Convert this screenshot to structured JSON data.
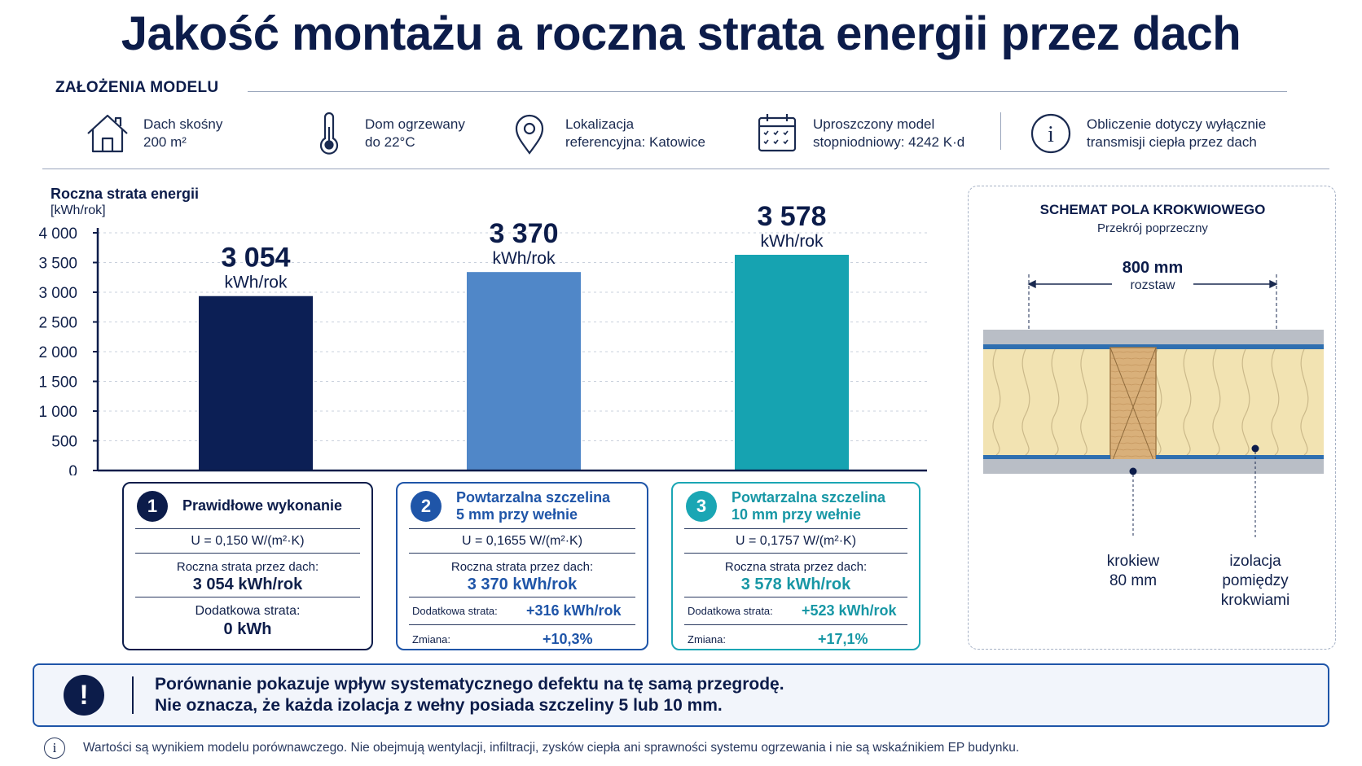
{
  "title": "Jakość montażu a roczna strata energii przez dach",
  "assumptions": {
    "heading": "ZAŁOŻENIA MODELU",
    "items": [
      {
        "icon": "house-icon",
        "line1": "Dach skośny",
        "line2": "200 m²"
      },
      {
        "icon": "thermometer-icon",
        "line1": "Dom ogrzewany",
        "line2": "do 22°C"
      },
      {
        "icon": "location-pin-icon",
        "line1": "Lokalizacja",
        "line2": "referencyjna: Katowice"
      },
      {
        "icon": "calendar-icon",
        "line1": "Uproszczony model",
        "line2": "stopniodniowy: 4242 K·d"
      },
      {
        "icon": "info-icon",
        "line1": "Obliczenie dotyczy wyłącznie",
        "line2": "transmisji ciepła przez dach"
      }
    ]
  },
  "chart_data": {
    "type": "bar",
    "ylabel": "Roczna strata energii",
    "yunit": "[kWh/rok]",
    "ylim": [
      0,
      4000
    ],
    "yticks": [
      0,
      500,
      1000,
      1500,
      2000,
      2500,
      3000,
      3500,
      4000
    ],
    "ytick_labels": [
      "0",
      "500",
      "1 000",
      "1 500",
      "2 000",
      "2 500",
      "3 000",
      "3 500",
      "4 000"
    ],
    "grid": true,
    "categories": [
      "1",
      "2",
      "3"
    ],
    "values": [
      3054,
      3370,
      3578
    ],
    "drawn_values": [
      2935,
      3340,
      3630
    ],
    "value_labels": [
      "3 054",
      "3 370",
      "3 578"
    ],
    "value_unit": "kWh/rok",
    "colors": [
      "#0c1f55",
      "#5087c8",
      "#16a3b1"
    ]
  },
  "cards": [
    {
      "num": "1",
      "name_line1": "Prawidłowe wykonanie",
      "name_line2": "",
      "u": "U = 0,150 W/(m²·K)",
      "loss_label": "Roczna strata przez dach:",
      "loss_value": "3 054 kWh/rok",
      "extra_label": "Dodatkowa strata:",
      "extra_value": "0 kWh"
    },
    {
      "num": "2",
      "name_line1": "Powtarzalna szczelina",
      "name_line2": "5 mm przy wełnie",
      "u": "U = 0,1655 W/(m²·K)",
      "loss_label": "Roczna strata przez dach:",
      "loss_value": "3 370 kWh/rok",
      "extra_label": "Dodatkowa strata:",
      "extra_value": "+316 kWh/rok",
      "change_label": "Zmiana:",
      "change_value": "+10,3%"
    },
    {
      "num": "3",
      "name_line1": "Powtarzalna szczelina",
      "name_line2": "10 mm przy wełnie",
      "u": "U = 0,1757 W/(m²·K)",
      "loss_label": "Roczna strata przez dach:",
      "loss_value": "3 578 kWh/rok",
      "extra_label": "Dodatkowa strata:",
      "extra_value": "+523 kWh/rok",
      "change_label": "Zmiana:",
      "change_value": "+17,1%"
    }
  ],
  "schema": {
    "title": "SCHEMAT POLA KROKWIOWEGO",
    "subtitle": "Przekrój poprzeczny",
    "spacing_value": "800 mm",
    "spacing_label": "rozstaw",
    "rafter_label1": "krokiew",
    "rafter_label2": "80 mm",
    "insul_label1": "izolacja",
    "insul_label2": "pomiędzy",
    "insul_label3": "krokwiami"
  },
  "notice": {
    "line1": "Porównanie pokazuje wpływ systematycznego defektu na tę samą przegrodę.",
    "line2": "Nie oznacza, że każda izolacja z wełny posiada szczeliny 5 lub 10 mm."
  },
  "footnote": "Wartości są wynikiem modelu porównawczego. Nie obejmują wentylacji, infiltracji, zysków ciepła ani sprawności systemu ogrzewania i nie są wskaźnikiem EP budynku."
}
